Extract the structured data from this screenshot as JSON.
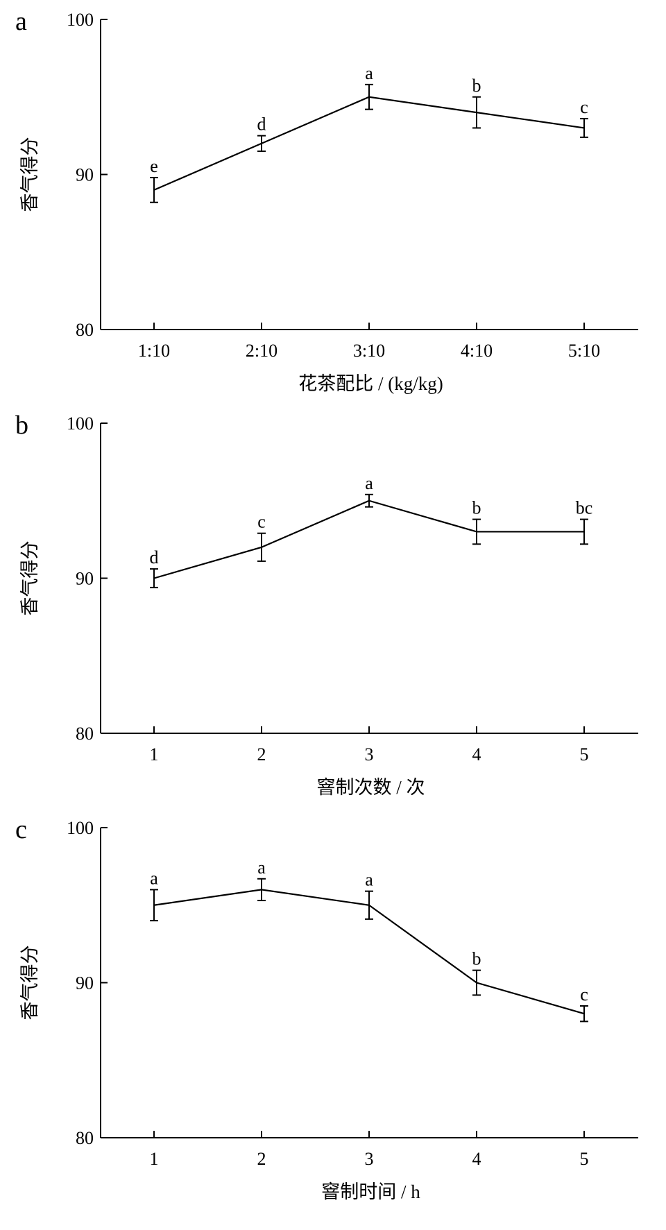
{
  "chart_data": [
    {
      "type": "line",
      "panel": "a",
      "xlabel": "花茶配比 / (kg/kg)",
      "ylabel": "香气得分",
      "categories": [
        "1:10",
        "2:10",
        "3:10",
        "4:10",
        "5:10"
      ],
      "values": [
        89,
        92,
        95,
        94,
        93
      ],
      "error": [
        0.8,
        0.5,
        0.8,
        1.0,
        0.6
      ],
      "significance": [
        "e",
        "d",
        "a",
        "b",
        "c"
      ],
      "ylim": [
        80,
        100
      ],
      "yticks": [
        80,
        90,
        100
      ],
      "grid": false
    },
    {
      "type": "line",
      "panel": "b",
      "xlabel": "窨制次数 / 次",
      "ylabel": "香气得分",
      "categories": [
        "1",
        "2",
        "3",
        "4",
        "5"
      ],
      "values": [
        90,
        92,
        95,
        93,
        93
      ],
      "error": [
        0.6,
        0.9,
        0.4,
        0.8,
        0.8
      ],
      "significance": [
        "d",
        "c",
        "a",
        "b",
        "bc"
      ],
      "ylim": [
        80,
        100
      ],
      "yticks": [
        80,
        90,
        100
      ],
      "grid": false
    },
    {
      "type": "line",
      "panel": "c",
      "xlabel": "窨制时间 / h",
      "ylabel": "香气得分",
      "categories": [
        "1",
        "2",
        "3",
        "4",
        "5"
      ],
      "values": [
        95,
        96,
        95,
        90,
        88
      ],
      "error": [
        1.0,
        0.7,
        0.9,
        0.8,
        0.5
      ],
      "significance": [
        "a",
        "a",
        "a",
        "b",
        "c"
      ],
      "ylim": [
        80,
        100
      ],
      "yticks": [
        80,
        90,
        100
      ],
      "grid": false
    }
  ]
}
